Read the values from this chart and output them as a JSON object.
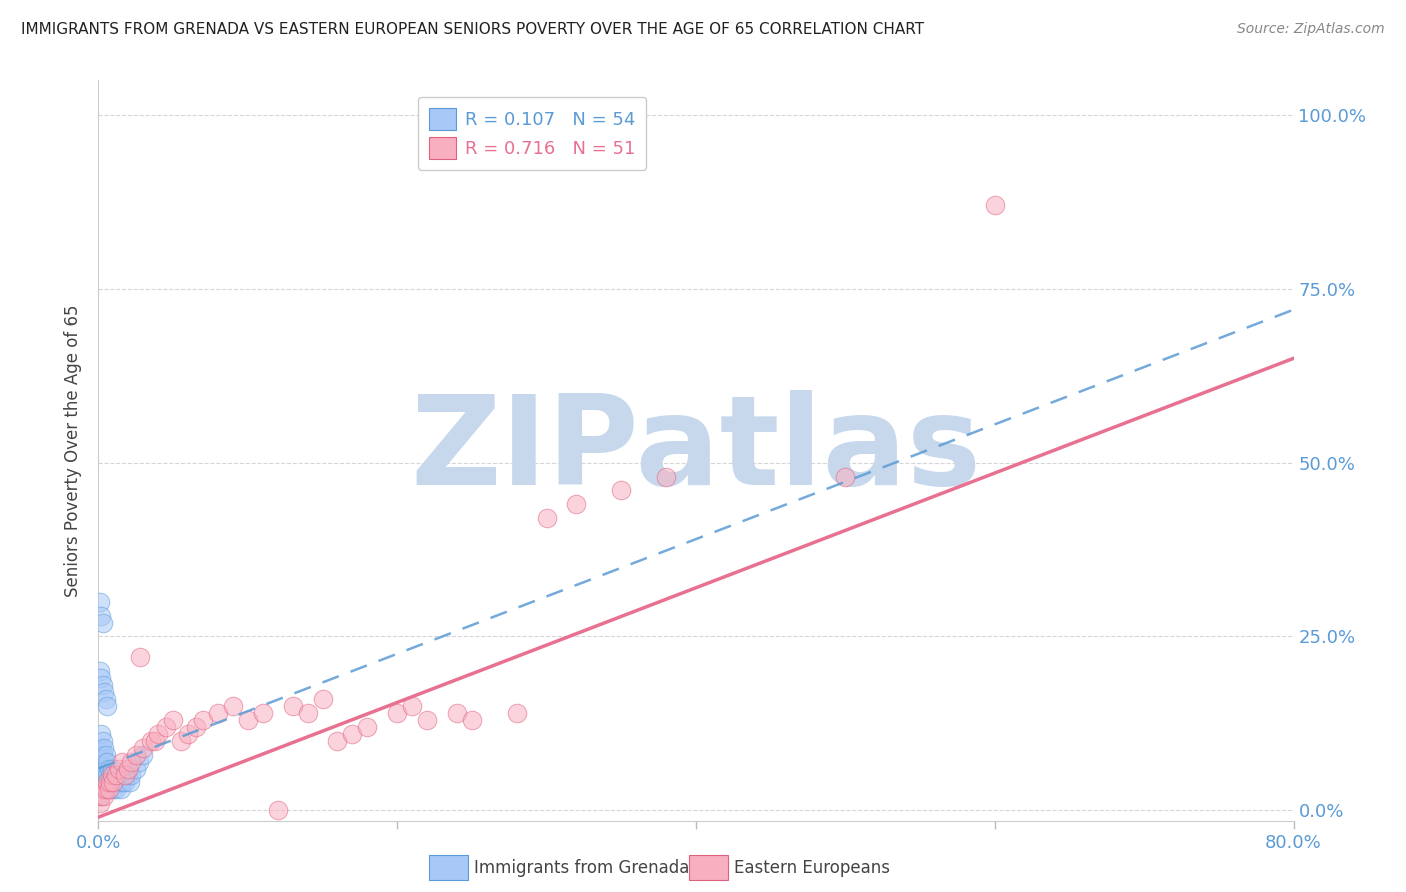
{
  "title": "IMMIGRANTS FROM GRENADA VS EASTERN EUROPEAN SENIORS POVERTY OVER THE AGE OF 65 CORRELATION CHART",
  "source": "Source: ZipAtlas.com",
  "ylabel": "Seniors Poverty Over the Age of 65",
  "watermark": "ZIPatlas",
  "legend_blue_r": "R = 0.107",
  "legend_blue_n": "N = 54",
  "legend_pink_r": "R = 0.716",
  "legend_pink_n": "N = 51",
  "ytick_labels": [
    "0.0%",
    "25.0%",
    "50.0%",
    "75.0%",
    "100.0%"
  ],
  "ytick_values": [
    0.0,
    0.25,
    0.5,
    0.75,
    1.0
  ],
  "xmin": 0.0,
  "xmax": 0.8,
  "ymin": -0.015,
  "ymax": 1.05,
  "blue_scatter_x": [
    0.001,
    0.001,
    0.001,
    0.001,
    0.002,
    0.002,
    0.002,
    0.002,
    0.002,
    0.003,
    0.003,
    0.003,
    0.003,
    0.004,
    0.004,
    0.004,
    0.004,
    0.005,
    0.005,
    0.005,
    0.006,
    0.006,
    0.006,
    0.007,
    0.007,
    0.008,
    0.008,
    0.009,
    0.009,
    0.01,
    0.01,
    0.011,
    0.012,
    0.013,
    0.014,
    0.015,
    0.016,
    0.017,
    0.018,
    0.02,
    0.021,
    0.022,
    0.025,
    0.027,
    0.03,
    0.001,
    0.002,
    0.003,
    0.001,
    0.002,
    0.003,
    0.004,
    0.005,
    0.006
  ],
  "blue_scatter_y": [
    0.02,
    0.04,
    0.06,
    0.08,
    0.03,
    0.05,
    0.07,
    0.09,
    0.11,
    0.04,
    0.06,
    0.08,
    0.1,
    0.03,
    0.05,
    0.07,
    0.09,
    0.04,
    0.06,
    0.08,
    0.03,
    0.05,
    0.07,
    0.04,
    0.06,
    0.03,
    0.05,
    0.04,
    0.06,
    0.03,
    0.05,
    0.04,
    0.03,
    0.04,
    0.05,
    0.03,
    0.04,
    0.05,
    0.04,
    0.05,
    0.04,
    0.05,
    0.06,
    0.07,
    0.08,
    0.3,
    0.28,
    0.27,
    0.2,
    0.19,
    0.18,
    0.17,
    0.16,
    0.15
  ],
  "pink_scatter_x": [
    0.001,
    0.002,
    0.003,
    0.004,
    0.005,
    0.006,
    0.007,
    0.008,
    0.009,
    0.01,
    0.012,
    0.014,
    0.016,
    0.018,
    0.02,
    0.022,
    0.025,
    0.028,
    0.03,
    0.035,
    0.038,
    0.04,
    0.045,
    0.05,
    0.055,
    0.06,
    0.065,
    0.07,
    0.08,
    0.09,
    0.1,
    0.11,
    0.12,
    0.13,
    0.14,
    0.15,
    0.16,
    0.17,
    0.18,
    0.2,
    0.21,
    0.22,
    0.24,
    0.25,
    0.28,
    0.3,
    0.32,
    0.35,
    0.38,
    0.5,
    0.6
  ],
  "pink_scatter_y": [
    0.01,
    0.02,
    0.03,
    0.02,
    0.03,
    0.04,
    0.03,
    0.04,
    0.05,
    0.04,
    0.05,
    0.06,
    0.07,
    0.05,
    0.06,
    0.07,
    0.08,
    0.22,
    0.09,
    0.1,
    0.1,
    0.11,
    0.12,
    0.13,
    0.1,
    0.11,
    0.12,
    0.13,
    0.14,
    0.15,
    0.13,
    0.14,
    0.0,
    0.15,
    0.14,
    0.16,
    0.1,
    0.11,
    0.12,
    0.14,
    0.15,
    0.13,
    0.14,
    0.13,
    0.14,
    0.42,
    0.44,
    0.46,
    0.48,
    0.48,
    0.87
  ],
  "blue_trend_start_y": 0.06,
  "blue_trend_end_y": 0.72,
  "pink_trend_start_y": -0.01,
  "pink_trend_end_y": 0.65,
  "blue_color": "#a8c8f8",
  "blue_edge_color": "#5b9bd5",
  "pink_color": "#f8b0c0",
  "pink_edge_color": "#e06080",
  "blue_line_color": "#5b9bd5",
  "pink_line_color": "#e87090",
  "background_color": "#ffffff",
  "grid_color": "#cccccc",
  "title_color": "#222222",
  "right_axis_color": "#5b9bd5",
  "watermark_color": "#c8d8ec",
  "watermark_fontsize": 90
}
